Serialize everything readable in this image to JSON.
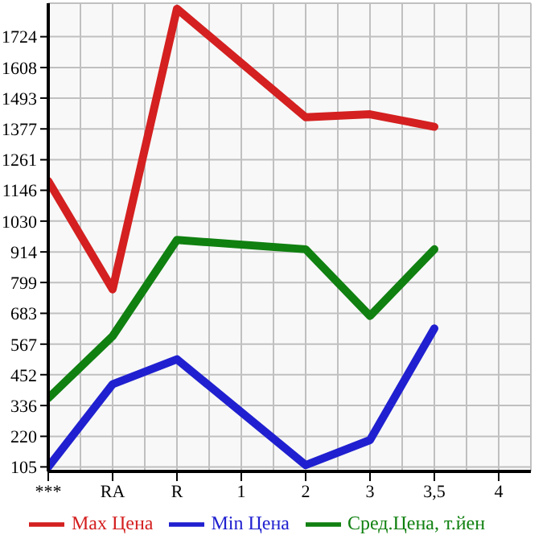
{
  "chart_data": {
    "type": "line",
    "categories": [
      "***",
      "RA",
      "R",
      "1",
      "2",
      "3",
      "3,5",
      "4"
    ],
    "series": [
      {
        "name": "Max Цена",
        "color": "#d42020",
        "values": [
          1181,
          773,
          1829,
          null,
          1421,
          1432,
          1385,
          null
        ]
      },
      {
        "name": "Min Цена",
        "color": "#2020d0",
        "values": [
          105,
          416,
          510,
          null,
          112,
          206,
          626,
          null
        ]
      },
      {
        "name": "Сред.Цена, т.йен",
        "color": "#108010",
        "values": [
          364,
          597,
          959,
          null,
          924,
          673,
          924,
          null
        ]
      }
    ],
    "ylim": [
      88,
      1850
    ],
    "yticks": [
      105,
      220,
      336,
      452,
      567,
      683,
      799,
      914,
      1030,
      1146,
      1261,
      1377,
      1493,
      1608,
      1724
    ],
    "grid": true,
    "legend": "bottom",
    "marker": "none",
    "line_style": "solid"
  }
}
